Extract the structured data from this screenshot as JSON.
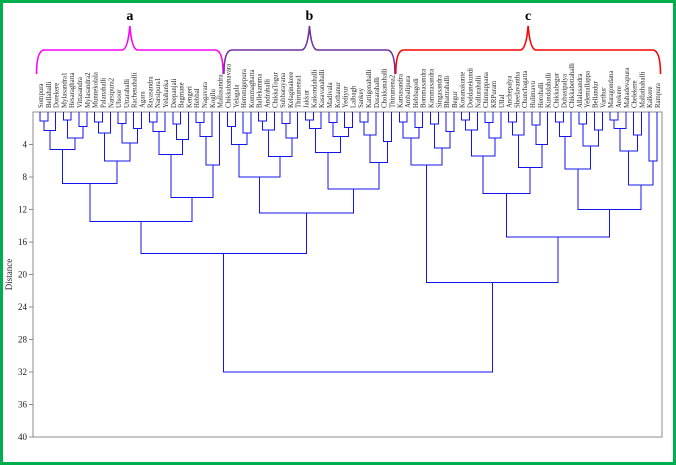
{
  "figure": {
    "border_color": "#00AE4D",
    "axis_color": "#8c8c8c",
    "background": "#ffffff",
    "label_color": "#262626"
  },
  "chart_data": {
    "type": "dendrogram",
    "title": "",
    "ylabel": "Distance",
    "ylim": [
      0,
      40
    ],
    "yticks": [
      4,
      8,
      12,
      16,
      20,
      24,
      28,
      32,
      36,
      40
    ],
    "distance_increases_downward": true,
    "line_color": "#1414EE",
    "legend_position": "none",
    "grid": false,
    "clusters": [
      {
        "label": "a",
        "brace_color": "#FF00FF",
        "leaf_start": 0,
        "leaf_end": 23
      },
      {
        "label": "b",
        "brace_color": "#7030A0",
        "leaf_start": 24,
        "leaf_end": 45
      },
      {
        "label": "c",
        "brace_color": "#FF0000",
        "leaf_start": 46,
        "leaf_end": 79
      }
    ],
    "root_merge_distance": 32,
    "ab_merge_distance": 17.4,
    "c_root_distance": 21,
    "tree": {
      "h": 32,
      "c": [
        {
          "h": 17.4,
          "c": [
            {
              "h": 13.5,
              "c": [
                {
                  "h": 8.8,
                  "c": [
                    {
                      "h": 4.6,
                      "c": [
                        {
                          "h": 2.3,
                          "c": [
                            {
                              "h": 1.1,
                              "c": [
                                "Sompura",
                                "Bellahalli"
                              ]
                            },
                            "Dorekere"
                          ]
                        },
                        {
                          "h": 3.2,
                          "c": [
                            {
                              "h": 1.0,
                              "c": [
                                "Mylasandra1",
                                "Hesaraghatta"
                              ]
                            },
                            {
                              "h": 1.8,
                              "c": [
                                "Vittasandra",
                                "Mylasandra2"
                              ]
                            }
                          ]
                        }
                      ]
                    },
                    {
                      "h": 6.0,
                      "c": [
                        {
                          "h": 2.6,
                          "c": [
                            {
                              "h": 1.2,
                              "c": [
                                "Munnekolala",
                                "Palanahalli"
                              ]
                            },
                            "Narsipura2"
                          ]
                        },
                        {
                          "h": 3.8,
                          "c": [
                            {
                              "h": 1.4,
                              "c": [
                                "Ulsoor",
                                "Uttarahalli"
                              ]
                            },
                            {
                              "h": 2.0,
                              "c": [
                                "Rachenahalli",
                                "Agara"
                              ]
                            }
                          ]
                        }
                      ]
                    }
                  ]
                },
                {
                  "h": 10.5,
                  "c": [
                    {
                      "h": 5.2,
                      "c": [
                        {
                          "h": 2.4,
                          "c": [
                            {
                              "h": 1.2,
                              "c": [
                                "Rayasandra",
                                "Narsipura1"
                              ]
                            },
                            "Yelahanka"
                          ]
                        },
                        {
                          "h": 3.4,
                          "c": [
                            {
                              "h": 1.5,
                              "c": [
                                "Deepanjali",
                                "Bagmane"
                              ]
                            },
                            "Kengeri"
                          ]
                        }
                      ]
                    },
                    {
                      "h": 6.5,
                      "c": [
                        {
                          "h": 3.0,
                          "c": [
                            {
                              "h": 1.3,
                              "c": [
                                "Hebbal",
                                "Nagavara"
                              ]
                            },
                            "Kogilu"
                          ]
                        },
                        "Mallasandra"
                      ]
                    }
                  ]
                }
              ]
            },
            {
              "h": 12.4,
              "c": [
                {
                  "h": 8.0,
                  "c": [
                    {
                      "h": 4.0,
                      "c": [
                        {
                          "h": 1.8,
                          "c": [
                            "Chikkabanavara",
                            "Yelagala"
                          ]
                        },
                        {
                          "h": 2.6,
                          "c": [
                            "Hemmigepura",
                            "Kommaghatta"
                          ]
                        }
                      ]
                    },
                    {
                      "h": 5.5,
                      "c": [
                        {
                          "h": 2.2,
                          "c": [
                            {
                              "h": 1.1,
                              "c": [
                                "Ballekamma",
                                "Andrahalli"
                              ]
                            },
                            "ChikkaTogur"
                          ]
                        },
                        {
                          "h": 3.2,
                          "c": [
                            {
                              "h": 1.4,
                              "c": [
                                "Subbarayana",
                                "Kelaginakere"
                              ]
                            },
                            "Thirumena1"
                          ]
                        }
                      ]
                    }
                  ]
                },
                {
                  "h": 9.5,
                  "c": [
                    {
                      "h": 5.0,
                      "c": [
                        {
                          "h": 2.0,
                          "c": [
                            {
                              "h": 1.0,
                              "c": [
                                "Jakkur",
                                "Kaikondahalli"
                              ]
                            },
                            "Kasavanahalli"
                          ]
                        },
                        {
                          "h": 3.0,
                          "c": [
                            {
                              "h": 1.3,
                              "c": [
                                "Madivala",
                                "Kothanur"
                              ]
                            },
                            {
                              "h": 1.9,
                              "c": [
                                "Yediyur",
                                "Lalbagh"
                              ]
                            }
                          ]
                        }
                      ]
                    },
                    {
                      "h": 6.2,
                      "c": [
                        {
                          "h": 2.8,
                          "c": [
                            {
                              "h": 1.2,
                              "c": [
                                "Sankey",
                                "Kattigenahalli"
                              ]
                            },
                            "Dasarahalli"
                          ]
                        },
                        {
                          "h": 3.6,
                          "c": [
                            "Chokkanahalli",
                            "Thirumena2"
                          ]
                        }
                      ]
                    }
                  ]
                }
              ]
            }
          ]
        },
        {
          "h": 21,
          "c": [
            {
              "h": 6.5,
              "c": [
                {
                  "h": 3.2,
                  "c": [
                    {
                      "h": 1.2,
                      "c": [
                        "Kamasandra",
                        "Ambalipura"
                      ]
                    },
                    {
                      "h": 1.9,
                      "c": [
                        "Hebbagodi",
                        "Bommasandra"
                      ]
                    }
                  ]
                },
                {
                  "h": 4.4,
                  "c": [
                    {
                      "h": 1.5,
                      "c": [
                        "Kammasandra",
                        "Singasandra"
                      ]
                    },
                    {
                      "h": 2.4,
                      "c": [
                        "Bhattrahalli",
                        "Begur"
                      ]
                    }
                  ]
                }
              ]
            },
            {
              "h": 15.4,
              "c": [
                {
                  "h": 10.0,
                  "c": [
                    {
                      "h": 5.4,
                      "c": [
                        {
                          "h": 2.2,
                          "c": [
                            {
                              "h": 1.0,
                              "c": [
                                "Konanakunte",
                                "Doddanekundi"
                              ]
                            },
                            "Nallurahalli"
                          ]
                        },
                        {
                          "h": 3.2,
                          "c": [
                            {
                              "h": 1.3,
                              "c": [
                                "Chinnappana",
                                "KRPuram"
                              ]
                            },
                            "Ullal"
                          ]
                        }
                      ]
                    },
                    {
                      "h": 6.8,
                      "c": [
                        {
                          "h": 2.8,
                          "c": [
                            {
                              "h": 1.2,
                              "c": [
                                "Anchepalya",
                                "Sheelavantha"
                              ]
                            },
                            "Chunchagatta"
                          ]
                        },
                        {
                          "h": 4.0,
                          "c": [
                            {
                              "h": 1.6,
                              "c": [
                                "Hulimavu",
                                "Herohalli"
                              ]
                            },
                            "Kundalahalli"
                          ]
                        }
                      ]
                    }
                  ]
                },
                {
                  "h": 12.0,
                  "c": [
                    {
                      "h": 7.0,
                      "c": [
                        {
                          "h": 3.0,
                          "c": [
                            {
                              "h": 1.2,
                              "c": [
                                "Chikkabegur",
                                "Dubasipalya"
                              ]
                            },
                            "Chikkabettahalli"
                          ]
                        },
                        {
                          "h": 4.2,
                          "c": [
                            {
                              "h": 1.5,
                              "c": [
                                "Allalasandra",
                                "Yelemallappa"
                              ]
                            },
                            {
                              "h": 2.2,
                              "c": [
                                "Bellandur",
                                "Varthur"
                              ]
                            }
                          ]
                        }
                      ]
                    },
                    {
                      "h": 9.0,
                      "c": [
                        {
                          "h": 4.8,
                          "c": [
                            {
                              "h": 2.0,
                              "c": [
                                {
                                  "h": 1.0,
                                  "c": [
                                    "Maragondana",
                                    "Arekere"
                                  ]
                                },
                                "Mahadevapura"
                              ]
                            },
                            {
                              "h": 2.8,
                              "c": [
                                "Chelekere",
                                "Mallathahalli"
                              ]
                            }
                          ]
                        },
                        {
                          "h": 6.0,
                          "c": [
                            "Kalkere",
                            "Rampura"
                          ]
                        }
                      ]
                    }
                  ]
                }
              ]
            }
          ]
        }
      ]
    }
  }
}
